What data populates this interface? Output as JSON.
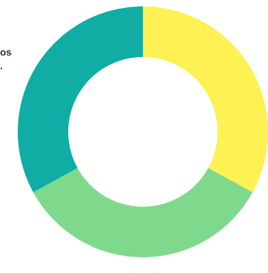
{
  "chart_data": {
    "type": "pie",
    "title": "",
    "categories": [
      "",
      "",
      ""
    ],
    "values": [
      33,
      34,
      33
    ],
    "colors": [
      "#fdf153",
      "#7ed98c",
      "#0fada3"
    ],
    "donut": true
  },
  "legend": {
    "partial_text_1": "os",
    "partial_text_2": "."
  }
}
